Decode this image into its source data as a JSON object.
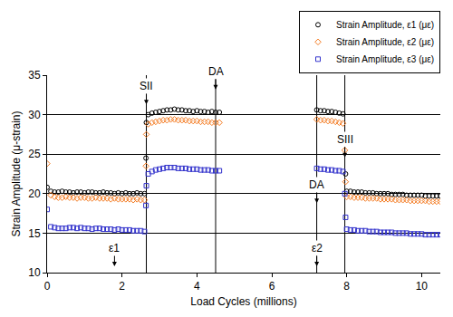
{
  "chart_data": {
    "type": "scatter",
    "x_label": "Load Cycles (millions)",
    "y_label": "Strain Amplitude (μ-strain)",
    "xlim": [
      0,
      10.5
    ],
    "xticks": [
      0,
      2,
      4,
      6,
      8,
      10
    ],
    "ylim": [
      10,
      35
    ],
    "yticks": [
      10,
      15,
      20,
      25,
      30,
      35
    ],
    "grid": "y",
    "legend": "upper right",
    "x": [
      0,
      0.1,
      0.2,
      0.3,
      0.4,
      0.5,
      0.6,
      0.7,
      0.8,
      0.9,
      1.0,
      1.1,
      1.2,
      1.3,
      1.4,
      1.5,
      1.6,
      1.7,
      1.8,
      1.9,
      2.0,
      2.1,
      2.2,
      2.3,
      2.4,
      2.5,
      2.6,
      2.64,
      2.65,
      2.7,
      2.8,
      2.9,
      3.0,
      3.1,
      3.2,
      3.3,
      3.4,
      3.5,
      3.6,
      3.7,
      3.8,
      3.9,
      4.0,
      4.1,
      4.2,
      4.3,
      4.4,
      4.5,
      4.6,
      7.2,
      7.3,
      7.4,
      7.5,
      7.6,
      7.7,
      7.8,
      7.9,
      7.95,
      7.97,
      8.0,
      8.1,
      8.2,
      8.3,
      8.4,
      8.5,
      8.6,
      8.7,
      8.8,
      8.9,
      9.0,
      9.1,
      9.2,
      9.3,
      9.4,
      9.5,
      9.6,
      9.7,
      9.8,
      9.9,
      10.0,
      10.1,
      10.2,
      10.3,
      10.4,
      10.5
    ],
    "series": [
      {
        "name": "Strain Amplitude, ε1 (με)",
        "color": "#000000",
        "marker": "circle-open",
        "values": [
          20.8,
          20.3,
          20.2,
          20.2,
          20.3,
          20.2,
          20.2,
          20.1,
          20.2,
          20.2,
          20.1,
          20.2,
          20.2,
          20.1,
          20.1,
          20.2,
          20.1,
          20.1,
          20.0,
          20.1,
          20.0,
          20.1,
          20.0,
          20.0,
          20.1,
          20.0,
          20.0,
          24.5,
          29.0,
          30.0,
          30.2,
          30.3,
          30.4,
          30.5,
          30.6,
          30.6,
          30.7,
          30.6,
          30.6,
          30.5,
          30.5,
          30.4,
          30.5,
          30.4,
          30.4,
          30.3,
          30.4,
          30.3,
          30.3,
          30.6,
          30.5,
          30.5,
          30.4,
          30.4,
          30.3,
          30.2,
          30.1,
          27.0,
          22.5,
          20.3,
          20.3,
          20.2,
          20.2,
          20.2,
          20.1,
          20.1,
          20.1,
          20.0,
          20.0,
          20.0,
          20.0,
          19.9,
          19.9,
          19.9,
          19.9,
          19.8,
          19.8,
          19.8,
          19.8,
          19.8,
          19.7,
          19.7,
          19.7,
          19.7,
          19.7
        ]
      },
      {
        "name": "Strain Amplitude, ε2 (με)",
        "color": "#f47a20",
        "marker": "diamond-open",
        "values": [
          23.8,
          19.8,
          19.6,
          19.5,
          19.5,
          19.6,
          19.5,
          19.5,
          19.4,
          19.5,
          19.5,
          19.4,
          19.4,
          19.5,
          19.4,
          19.4,
          19.4,
          19.3,
          19.4,
          19.3,
          19.3,
          19.3,
          19.3,
          19.2,
          19.3,
          19.2,
          19.2,
          23.5,
          27.5,
          28.8,
          29.0,
          29.1,
          29.2,
          29.3,
          29.3,
          29.4,
          29.4,
          29.3,
          29.3,
          29.3,
          29.2,
          29.2,
          29.2,
          29.1,
          29.1,
          29.1,
          29.0,
          29.0,
          29.0,
          29.4,
          29.3,
          29.3,
          29.2,
          29.2,
          29.1,
          29.0,
          28.9,
          25.5,
          21.5,
          19.6,
          19.6,
          19.5,
          19.5,
          19.5,
          19.4,
          19.4,
          19.4,
          19.4,
          19.3,
          19.3,
          19.3,
          19.3,
          19.2,
          19.2,
          19.2,
          19.2,
          19.1,
          19.1,
          19.1,
          19.1,
          19.1,
          19.0,
          19.0,
          19.0,
          19.0
        ]
      },
      {
        "name": "Strain Amplitude, ε3 (με)",
        "color": "#3333cc",
        "marker": "square-open",
        "values": [
          18.0,
          15.8,
          15.7,
          15.6,
          15.6,
          15.6,
          15.7,
          15.7,
          15.6,
          15.7,
          15.6,
          15.6,
          15.5,
          15.6,
          15.6,
          15.5,
          15.5,
          15.5,
          15.4,
          15.5,
          15.4,
          15.4,
          15.4,
          15.3,
          15.3,
          15.3,
          15.2,
          18.5,
          21.0,
          22.5,
          22.8,
          23.0,
          23.1,
          23.2,
          23.3,
          23.3,
          23.3,
          23.2,
          23.2,
          23.2,
          23.1,
          23.1,
          23.1,
          23.0,
          23.0,
          23.0,
          22.9,
          22.9,
          22.9,
          23.2,
          23.1,
          23.1,
          23.0,
          23.0,
          22.9,
          22.9,
          22.8,
          20.0,
          17.0,
          15.5,
          15.4,
          15.4,
          15.3,
          15.3,
          15.3,
          15.2,
          15.2,
          15.2,
          15.1,
          15.1,
          15.1,
          15.1,
          15.0,
          15.0,
          15.0,
          15.0,
          14.9,
          14.9,
          14.9,
          14.9,
          14.8,
          14.8,
          14.8,
          14.8,
          14.8
        ]
      }
    ],
    "vlines": [
      2.65,
      4.5,
      7.2,
      7.95
    ],
    "annotations": [
      {
        "text": "SII",
        "x": 2.65,
        "y": 31.3
      },
      {
        "text": "DA",
        "x": 4.5,
        "y": 33.2
      },
      {
        "text": "ε1",
        "x": 1.8,
        "y": 10.8
      },
      {
        "text": "DA",
        "x": 7.2,
        "y": 18.8
      },
      {
        "text": "ε2",
        "x": 7.2,
        "y": 10.8
      },
      {
        "text": "SIII",
        "x": 7.95,
        "y": 24.6
      }
    ]
  }
}
